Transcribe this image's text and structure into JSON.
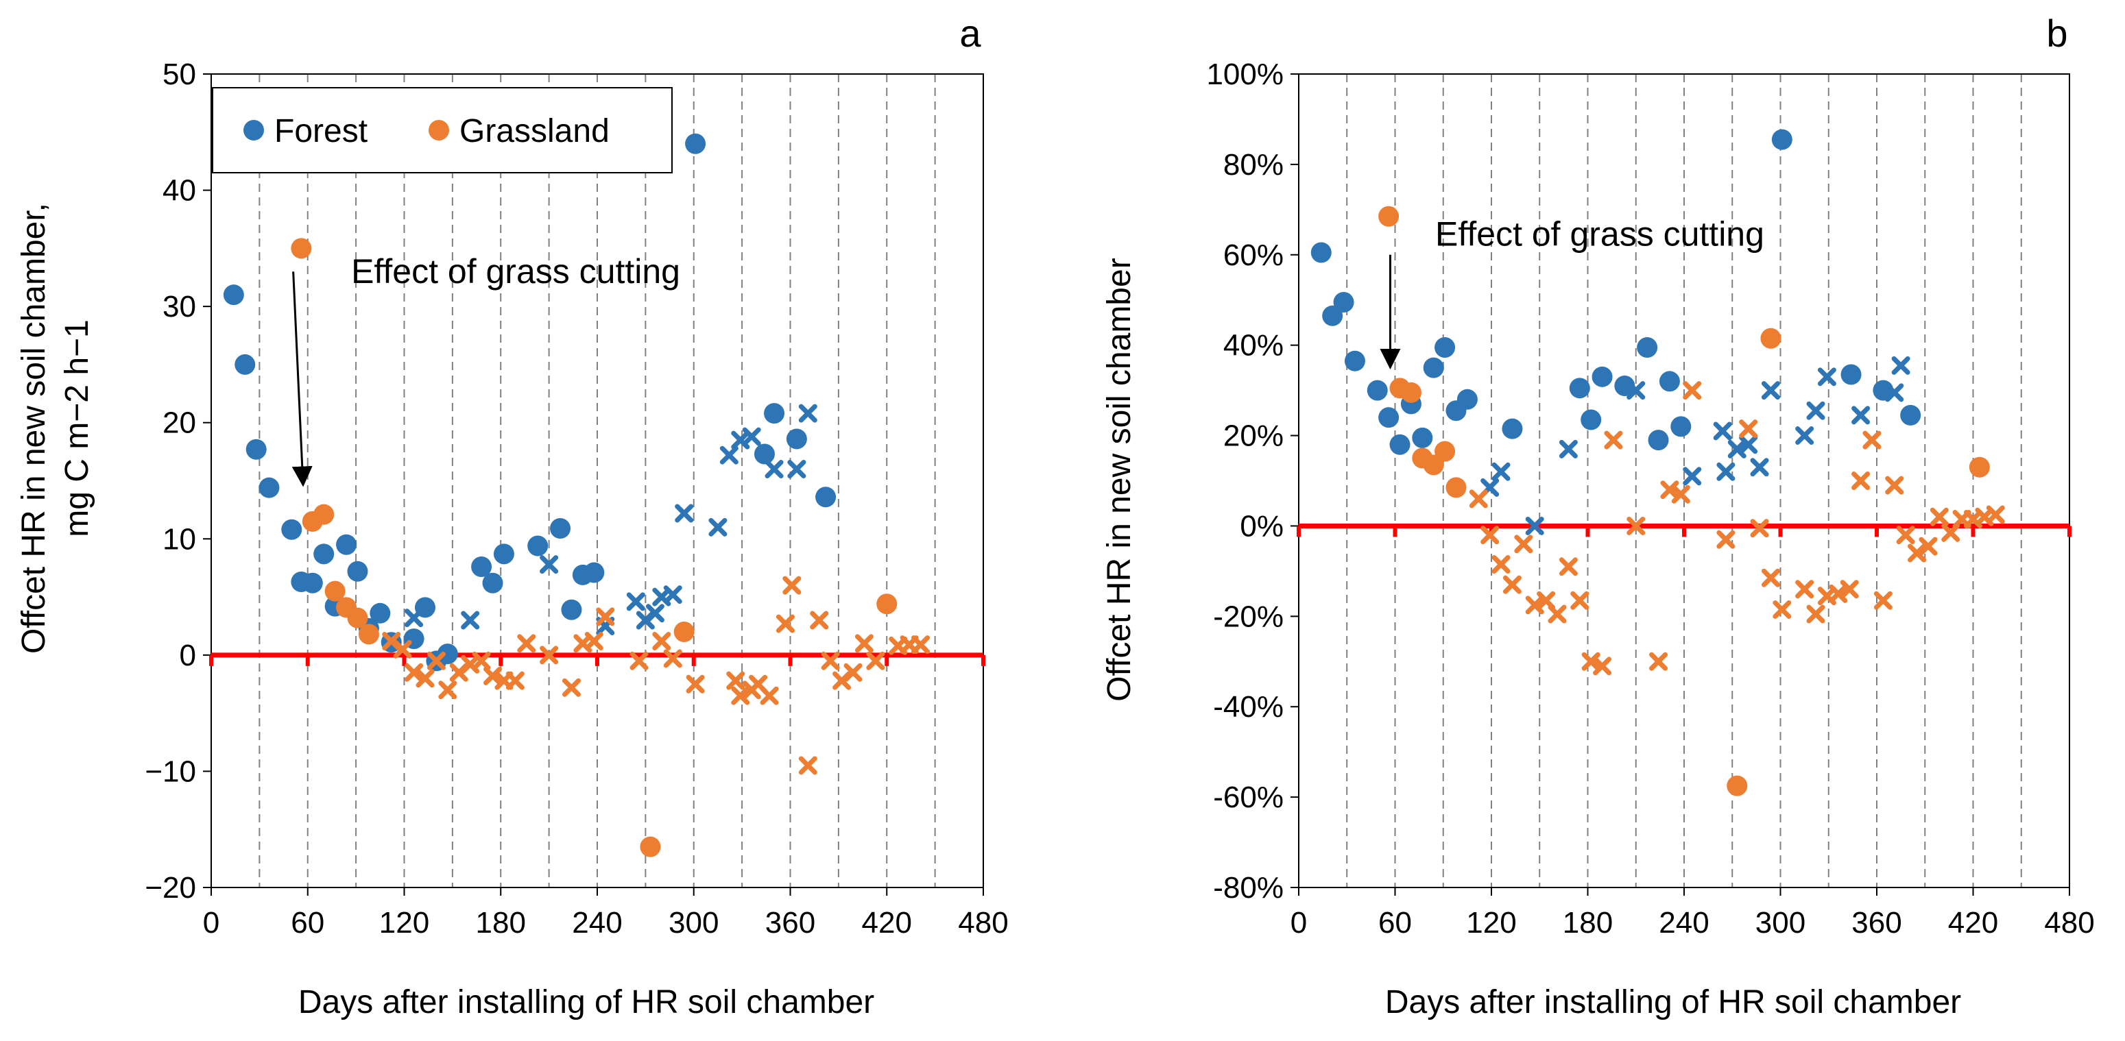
{
  "colors": {
    "forest": "#2E75B6",
    "grassland": "#ED7D31",
    "zero_line": "#FF0000",
    "gridline": "#808080",
    "axis": "#000000"
  },
  "chart_data": [
    {
      "panel": "a",
      "type": "scatter",
      "xlabel": "Days after installing of HR soil chamber",
      "ylabel_line1": "Offcet HR in new soil chamber,",
      "ylabel_line2": "mg C m−2 h−1",
      "xlim": [
        0,
        480
      ],
      "ylim": [
        -20,
        50
      ],
      "x_ticks": [
        "0",
        "60",
        "120",
        "180",
        "240",
        "300",
        "360",
        "420",
        "480"
      ],
      "x_tick_values": [
        0,
        60,
        120,
        180,
        240,
        300,
        360,
        420,
        480
      ],
      "y_ticks": [
        "50",
        "40",
        "30",
        "20",
        "10",
        "0",
        "−10",
        "−20"
      ],
      "y_tick_values": [
        50,
        40,
        30,
        20,
        10,
        0,
        -10,
        -20
      ],
      "vertical_gridlines": [
        30,
        60,
        90,
        120,
        150,
        180,
        210,
        240,
        270,
        300,
        330,
        360,
        390,
        420,
        450
      ],
      "reference_line_y": 0,
      "legend": {
        "position": "top-left",
        "entries": [
          "Forest",
          "Grassland"
        ]
      },
      "annotation": {
        "text": "Effect of grass cutting",
        "text_x": 87,
        "text_y": 32,
        "arrow_from": [
          51,
          33
        ],
        "arrow_to": [
          57,
          15
        ]
      },
      "series": [
        {
          "name": "Forest",
          "marker": "circle",
          "points": [
            [
              14,
              31
            ],
            [
              21,
              25
            ],
            [
              28,
              17.7
            ],
            [
              36,
              14.4
            ],
            [
              50,
              10.8
            ],
            [
              56,
              6.3
            ],
            [
              63,
              6.2
            ],
            [
              70,
              8.7
            ],
            [
              77,
              4.2
            ],
            [
              84,
              9.5
            ],
            [
              91,
              7.2
            ],
            [
              98,
              2.3
            ],
            [
              105,
              3.6
            ],
            [
              112,
              1.1
            ],
            [
              126,
              1.4
            ],
            [
              133,
              4.1
            ],
            [
              140,
              -0.5
            ],
            [
              147,
              0.1
            ],
            [
              168,
              7.6
            ],
            [
              175,
              6.2
            ],
            [
              182,
              8.7
            ],
            [
              203,
              9.4
            ],
            [
              217,
              10.9
            ],
            [
              224,
              3.9
            ],
            [
              231,
              6.9
            ],
            [
              238,
              7.1
            ],
            [
              301,
              44
            ],
            [
              344,
              17.3
            ],
            [
              350,
              20.8
            ],
            [
              364,
              18.6
            ],
            [
              382,
              13.6
            ]
          ]
        },
        {
          "name": "Forest",
          "marker": "cross",
          "points": [
            [
              126,
              3.2
            ],
            [
              161,
              3
            ],
            [
              210,
              7.8
            ],
            [
              245,
              2.5
            ],
            [
              264,
              4.6
            ],
            [
              270,
              3
            ],
            [
              276,
              3.6
            ],
            [
              280,
              5
            ],
            [
              287,
              5.2
            ],
            [
              294,
              12.2
            ],
            [
              315,
              11
            ],
            [
              322,
              17.2
            ],
            [
              329,
              18.5
            ],
            [
              336,
              18.8
            ],
            [
              350,
              16
            ],
            [
              364,
              16
            ],
            [
              371,
              20.8
            ]
          ]
        },
        {
          "name": "Grassland",
          "marker": "circle",
          "points": [
            [
              56,
              35
            ],
            [
              63,
              11.5
            ],
            [
              70,
              12.1
            ],
            [
              77,
              5.5
            ],
            [
              84,
              4.1
            ],
            [
              91,
              3.2
            ],
            [
              98,
              1.8
            ],
            [
              273,
              -16.5
            ],
            [
              294,
              2
            ],
            [
              420,
              4.4
            ]
          ]
        },
        {
          "name": "Grassland",
          "marker": "cross",
          "points": [
            [
              112,
              1.2
            ],
            [
              119,
              0.5
            ],
            [
              126,
              -1.5
            ],
            [
              133,
              -2
            ],
            [
              140,
              -0.5
            ],
            [
              147,
              -3
            ],
            [
              154,
              -1.5
            ],
            [
              161,
              -0.8
            ],
            [
              168,
              -0.5
            ],
            [
              175,
              -1.8
            ],
            [
              182,
              -2.2
            ],
            [
              189,
              -2.2
            ],
            [
              196,
              1
            ],
            [
              210,
              0
            ],
            [
              224,
              -2.8
            ],
            [
              231,
              1
            ],
            [
              238,
              1.2
            ],
            [
              245,
              3.3
            ],
            [
              266,
              -0.5
            ],
            [
              280,
              1.2
            ],
            [
              287,
              -0.3
            ],
            [
              301,
              -2.5
            ],
            [
              326,
              -2.2
            ],
            [
              329,
              -3.5
            ],
            [
              336,
              -3
            ],
            [
              340,
              -2.5
            ],
            [
              347,
              -3.5
            ],
            [
              357,
              2.7
            ],
            [
              361,
              6
            ],
            [
              371,
              -9.5
            ],
            [
              378,
              3
            ],
            [
              385,
              -0.5
            ],
            [
              392,
              -2.2
            ],
            [
              399,
              -1.5
            ],
            [
              406,
              1
            ],
            [
              413,
              -0.5
            ],
            [
              427,
              0.8
            ],
            [
              434,
              0.9
            ],
            [
              441,
              0.9
            ]
          ]
        }
      ]
    },
    {
      "panel": "b",
      "type": "scatter",
      "xlabel": "Days after installing of HR soil chamber",
      "ylabel": "Offcet HR in new soil chamber",
      "xlim": [
        0,
        480
      ],
      "ylim": [
        -80,
        100
      ],
      "x_ticks": [
        "0",
        "60",
        "120",
        "180",
        "240",
        "300",
        "360",
        "420",
        "480"
      ],
      "x_tick_values": [
        0,
        60,
        120,
        180,
        240,
        300,
        360,
        420,
        480
      ],
      "y_ticks": [
        "100%",
        "80%",
        "60%",
        "40%",
        "20%",
        "0%",
        "-20%",
        "-40%",
        "-60%",
        "-80%"
      ],
      "y_tick_values": [
        100,
        80,
        60,
        40,
        20,
        0,
        -20,
        -40,
        -60,
        -80
      ],
      "vertical_gridlines": [
        30,
        60,
        90,
        120,
        150,
        180,
        210,
        240,
        270,
        300,
        330,
        360,
        390,
        420,
        450
      ],
      "reference_line_y": 0,
      "annotation": {
        "text": "Effect of grass cutting",
        "text_x": 85,
        "text_y": 62,
        "arrow_from": [
          57,
          60
        ],
        "arrow_to": [
          57,
          36
        ]
      },
      "series": [
        {
          "name": "Forest",
          "marker": "circle",
          "points": [
            [
              14,
              60.5
            ],
            [
              21,
              46.5
            ],
            [
              28,
              49.5
            ],
            [
              35,
              36.5
            ],
            [
              49,
              30
            ],
            [
              56,
              24
            ],
            [
              63,
              18
            ],
            [
              70,
              27
            ],
            [
              77,
              19.5
            ],
            [
              84,
              35
            ],
            [
              91,
              39.5
            ],
            [
              98,
              25.5
            ],
            [
              105,
              28
            ],
            [
              133,
              21.5
            ],
            [
              175,
              30.5
            ],
            [
              182,
              23.5
            ],
            [
              189,
              33
            ],
            [
              203,
              31
            ],
            [
              217,
              39.5
            ],
            [
              224,
              19
            ],
            [
              231,
              32
            ],
            [
              238,
              22
            ],
            [
              301,
              85.5
            ],
            [
              344,
              33.5
            ],
            [
              364,
              30
            ],
            [
              381,
              24.5
            ]
          ]
        },
        {
          "name": "Forest",
          "marker": "cross",
          "points": [
            [
              119,
              8.5
            ],
            [
              126,
              12
            ],
            [
              147,
              0
            ],
            [
              168,
              17
            ],
            [
              210,
              30
            ],
            [
              245,
              11
            ],
            [
              264,
              21
            ],
            [
              266,
              12
            ],
            [
              273,
              17
            ],
            [
              280,
              18
            ],
            [
              287,
              13
            ],
            [
              294,
              30
            ],
            [
              315,
              20
            ],
            [
              322,
              25.5
            ],
            [
              329,
              33
            ],
            [
              350,
              24.5
            ],
            [
              371,
              29.5
            ],
            [
              375,
              35.5
            ]
          ]
        },
        {
          "name": "Grassland",
          "marker": "circle",
          "points": [
            [
              56,
              68.5
            ],
            [
              63,
              30.5
            ],
            [
              70,
              29.5
            ],
            [
              77,
              15
            ],
            [
              84,
              13.5
            ],
            [
              91,
              16.5
            ],
            [
              98,
              8.5
            ],
            [
              273,
              -57.5
            ],
            [
              294,
              41.5
            ],
            [
              424,
              13
            ]
          ]
        },
        {
          "name": "Grassland",
          "marker": "cross",
          "points": [
            [
              112,
              6
            ],
            [
              119,
              -2
            ],
            [
              126,
              -8.5
            ],
            [
              133,
              -13
            ],
            [
              140,
              -4
            ],
            [
              147,
              -17.5
            ],
            [
              154,
              -16.5
            ],
            [
              161,
              -19.5
            ],
            [
              168,
              -9
            ],
            [
              175,
              -16.5
            ],
            [
              182,
              -30
            ],
            [
              189,
              -31
            ],
            [
              196,
              19
            ],
            [
              210,
              0
            ],
            [
              224,
              -30
            ],
            [
              231,
              8
            ],
            [
              238,
              7
            ],
            [
              245,
              30
            ],
            [
              266,
              -3
            ],
            [
              280,
              21.5
            ],
            [
              287,
              -0.5
            ],
            [
              294,
              -11.5
            ],
            [
              301,
              -18.5
            ],
            [
              315,
              -14
            ],
            [
              322,
              -19.5
            ],
            [
              329,
              -15.5
            ],
            [
              336,
              -15
            ],
            [
              343,
              -14
            ],
            [
              350,
              10
            ],
            [
              357,
              19
            ],
            [
              364,
              -16.5
            ],
            [
              371,
              9
            ],
            [
              378,
              -2
            ],
            [
              385,
              -6
            ],
            [
              392,
              -4.5
            ],
            [
              399,
              2
            ],
            [
              406,
              -1.5
            ],
            [
              413,
              1.5
            ],
            [
              420,
              1.5
            ],
            [
              427,
              2
            ],
            [
              434,
              2.5
            ]
          ]
        }
      ]
    }
  ]
}
